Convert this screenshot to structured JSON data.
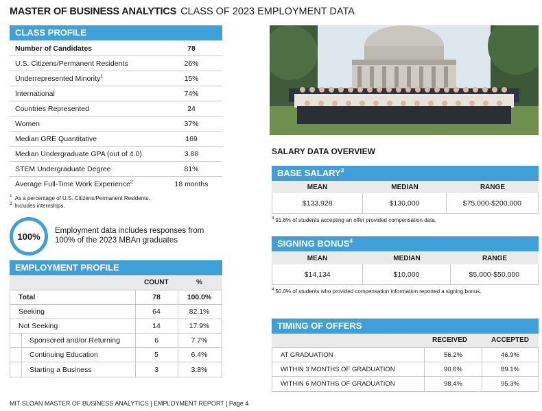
{
  "title": {
    "main": "MASTER OF BUSINESS ANALYTICS",
    "sub": "CLASS OF 2023 EMPLOYMENT DATA"
  },
  "class_profile": {
    "header": "CLASS PROFILE",
    "rows": [
      {
        "label": "Number of Candidates",
        "sup": "",
        "value": "78"
      },
      {
        "label": "U.S. Citizens/Permanent Residents",
        "sup": "",
        "value": "26%"
      },
      {
        "label": "Underrepresented Minority",
        "sup": "1",
        "value": "15%"
      },
      {
        "label": "International",
        "sup": "",
        "value": "74%"
      },
      {
        "label": "Countries Represented",
        "sup": "",
        "value": "24"
      },
      {
        "label": "Women",
        "sup": "",
        "value": "37%"
      },
      {
        "label": "Median GRE Quantitative",
        "sup": "",
        "value": "169"
      },
      {
        "label": "Median Undergraduate GPA (out of 4.0)",
        "sup": "",
        "value": "3.88"
      },
      {
        "label": "STEM Undergraduate Degree",
        "sup": "",
        "value": "81%"
      },
      {
        "label": "Average Full-Time Work Experience",
        "sup": "2",
        "value": "18 months"
      }
    ],
    "footnotes": [
      {
        "num": "1",
        "text": "As a percentage of U.S. Citizens/Permanent Residents."
      },
      {
        "num": "2",
        "text": "Includes internships."
      }
    ]
  },
  "response": {
    "ring_value": "100%",
    "text": "Employment data includes responses from 100% of the 2023 MBAn graduates"
  },
  "employment_profile": {
    "header": "EMPLOYMENT PROFILE",
    "col_count": "COUNT",
    "col_pct": "%",
    "rows": [
      {
        "label": "Total",
        "count": "78",
        "pct": "100.0%"
      },
      {
        "label": "Seeking",
        "count": "64",
        "pct": "82.1%"
      },
      {
        "label": "Not Seeking",
        "count": "14",
        "pct": "17.9%"
      },
      {
        "label": "Sponsored and/or Returning",
        "count": "6",
        "pct": "7.7%"
      },
      {
        "label": "Continuing Education",
        "count": "5",
        "pct": "6.4%"
      },
      {
        "label": "Starting a Business",
        "count": "3",
        "pct": "3.8%"
      }
    ]
  },
  "salary_overview": {
    "title": "SALARY DATA OVERVIEW",
    "base_salary": {
      "header": "BASE SALARY",
      "sup": "3",
      "cols": [
        "MEAN",
        "MEDIAN",
        "RANGE"
      ],
      "values": [
        "$133,928",
        "$130,000",
        "$75,000-$200,000"
      ],
      "footnote_num": "3",
      "footnote": "91.8% of students accepting an offer provided compensation data."
    },
    "signing_bonus": {
      "header": "SIGNING BONUS",
      "sup": "4",
      "cols": [
        "MEAN",
        "MEDIAN",
        "RANGE"
      ],
      "values": [
        "$14,134",
        "$10,000",
        "$5,000-$50,000"
      ],
      "footnote_num": "4",
      "footnote": "50.0% of students who provided compensation information reported a signing bonus."
    }
  },
  "timing": {
    "header": "TIMING OF OFFERS",
    "col_received": "RECEIVED",
    "col_accepted": "ACCEPTED",
    "rows": [
      {
        "label": "AT GRADUATION",
        "received": "56.2%",
        "accepted": "46.9%"
      },
      {
        "label": "WITHIN 3 MONTHS  OF GRADUATION",
        "received": "90.6%",
        "accepted": "89.1%"
      },
      {
        "label": "WITHIN 6 MONTHS  OF GRADUATION",
        "received": "98.4%",
        "accepted": "95.3%"
      }
    ]
  },
  "footer": "MIT SLOAN MASTER OF BUSINESS ANALYTICS | EMPLOYMENT REPORT | Page 4",
  "colors": {
    "accent": "#3f9fd8",
    "table_head": "#eaeaea",
    "rule": "#c8c8c8"
  }
}
